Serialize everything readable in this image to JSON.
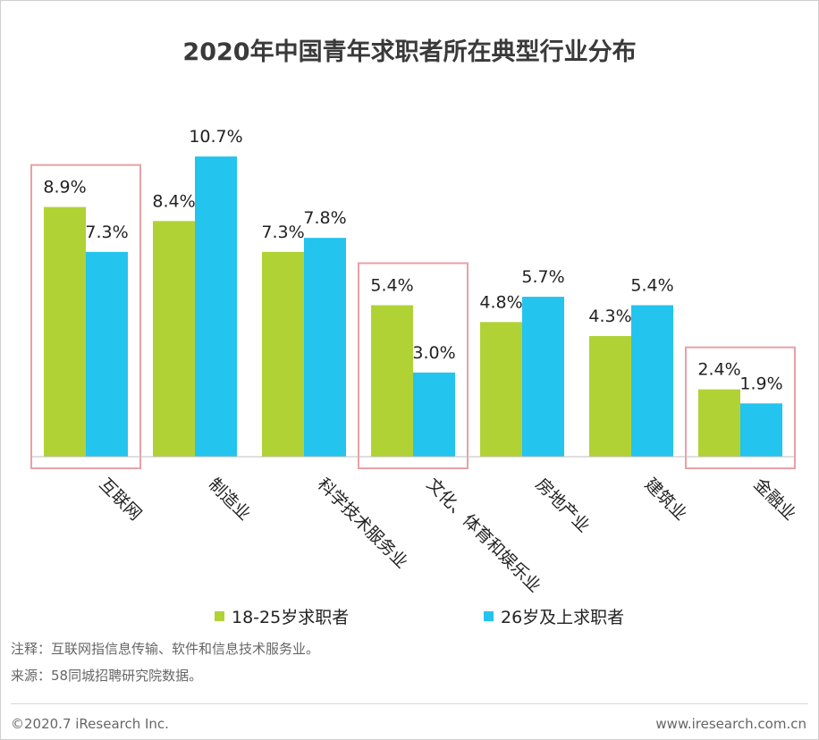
{
  "chart_data": {
    "type": "bar",
    "title": "2020年中国青年求职者所在典型行业分布",
    "categories": [
      "互联网",
      "制造业",
      "科学技术服务业",
      "文化、体育和娱乐业",
      "房地产业",
      "建筑业",
      "金融业"
    ],
    "series": [
      {
        "name": "18-25岁求职者",
        "color": "#b1d235",
        "values": [
          8.9,
          8.4,
          7.3,
          5.4,
          4.8,
          4.3,
          2.4
        ]
      },
      {
        "name": "26岁及上求职者",
        "color": "#23c4ee",
        "values": [
          7.3,
          10.7,
          7.8,
          3.0,
          5.7,
          5.4,
          1.9
        ]
      }
    ],
    "value_suffix": "%",
    "ylim": [
      0,
      11.5
    ],
    "highlighted_categories": [
      "互联网",
      "文化、体育和娱乐业",
      "金融业"
    ],
    "highlight_color": "#e8a1a6"
  },
  "note": "注释：互联网指信息传输、软件和信息技术服务业。",
  "source": "来源：58同城招聘研究院数据。",
  "copyright": "©2020.7 iResearch Inc.",
  "website": "www.iresearch.com.cn"
}
